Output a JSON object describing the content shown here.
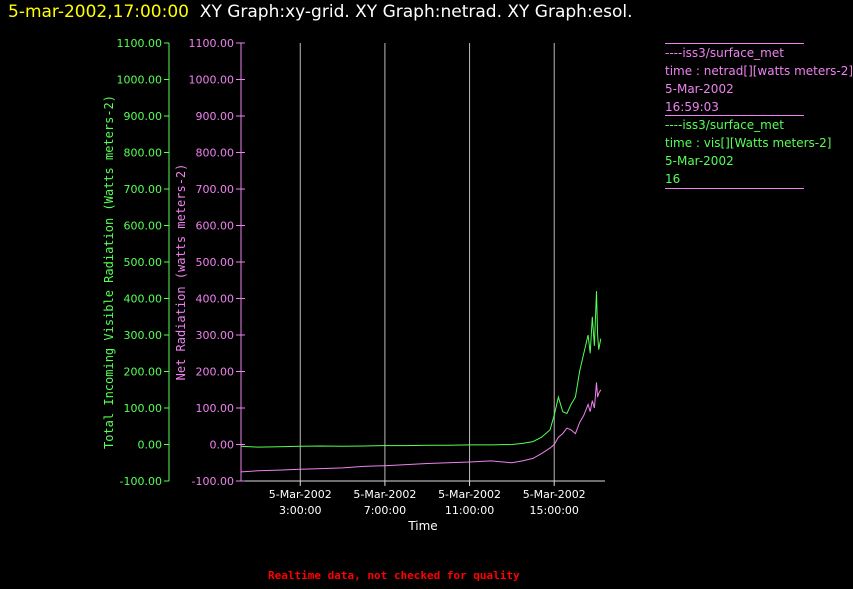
{
  "header": {
    "timestamp": "5-mar-2002,17:00:00",
    "graphs": "XY Graph:xy-grid.  XY Graph:netrad.  XY Graph:esol."
  },
  "legend": [
    {
      "lines": [
        "----iss3/surface_met",
        "time : netrad[][watts meters-2]",
        "5-Mar-2002",
        "16:59:03"
      ],
      "color": "#ee82ee"
    },
    {
      "lines": [
        "----iss3/surface_met",
        "time : vis[][Watts meters-2]",
        "5-Mar-2002",
        "16"
      ],
      "color": "#55ff55"
    }
  ],
  "footer": "Realtime data, not checked for quality",
  "chart_data": {
    "type": "line",
    "title": "",
    "xlabel": "Time",
    "x_tick_labels": [
      [
        "5-Mar-2002",
        "3:00:00"
      ],
      [
        "5-Mar-2002",
        "7:00:00"
      ],
      [
        "5-Mar-2002",
        "11:00:00"
      ],
      [
        "5-Mar-2002",
        "15:00:00"
      ]
    ],
    "x_ticks_hours": [
      3,
      7,
      11,
      15
    ],
    "xlim_hours": [
      0.2,
      17.4
    ],
    "grid_x": true,
    "axes": [
      {
        "label": "Total Incoming Visible Radiation (Watts meters-2)",
        "color": "#55ff55",
        "ticks": [
          "-100.00",
          "0.00",
          "100.00",
          "200.00",
          "300.00",
          "400.00",
          "500.00",
          "600.00",
          "700.00",
          "800.00",
          "900.00",
          "1000.00",
          "1100.00"
        ],
        "ylim": [
          -100,
          1100
        ]
      },
      {
        "label": "Net Radiation (watts meters-2)",
        "color": "#ee82ee",
        "ticks": [
          "-100.00",
          "0.00",
          "100.00",
          "200.00",
          "300.00",
          "400.00",
          "500.00",
          "600.00",
          "700.00",
          "800.00",
          "900.00",
          "1000.00",
          "1100.00"
        ],
        "ylim": [
          -100,
          1100
        ]
      }
    ],
    "series": [
      {
        "name": "vis",
        "color": "#55ff55",
        "x": [
          0.2,
          1,
          2,
          3,
          4,
          5,
          6,
          7,
          8,
          9,
          10,
          11,
          12,
          13,
          13.5,
          14,
          14.4,
          14.8,
          15,
          15.2,
          15.4,
          15.6,
          15.8,
          16,
          16.2,
          16.4,
          16.6,
          16.7,
          16.8,
          16.9,
          17,
          17.05,
          17.1,
          17.2
        ],
        "y": [
          -5,
          -7,
          -6,
          -5,
          -4,
          -5,
          -4,
          -3,
          -3,
          -2,
          -2,
          -1,
          -1,
          0,
          3,
          8,
          20,
          40,
          80,
          130,
          90,
          85,
          110,
          130,
          200,
          250,
          300,
          250,
          350,
          270,
          420,
          300,
          260,
          290
        ]
      },
      {
        "name": "netrad",
        "color": "#ee82ee",
        "x": [
          0.2,
          1,
          2,
          3,
          4,
          5,
          6,
          7,
          8,
          9,
          10,
          11,
          12,
          13,
          13.5,
          14,
          14.4,
          14.8,
          15,
          15.2,
          15.4,
          15.6,
          15.8,
          16,
          16.2,
          16.4,
          16.6,
          16.7,
          16.8,
          16.9,
          17,
          17.05,
          17.1,
          17.2
        ],
        "y": [
          -75,
          -72,
          -70,
          -68,
          -66,
          -64,
          -60,
          -58,
          -55,
          -52,
          -50,
          -48,
          -45,
          -50,
          -45,
          -38,
          -25,
          -10,
          0,
          20,
          30,
          45,
          40,
          30,
          60,
          80,
          110,
          90,
          120,
          100,
          170,
          130,
          140,
          150
        ]
      }
    ]
  }
}
